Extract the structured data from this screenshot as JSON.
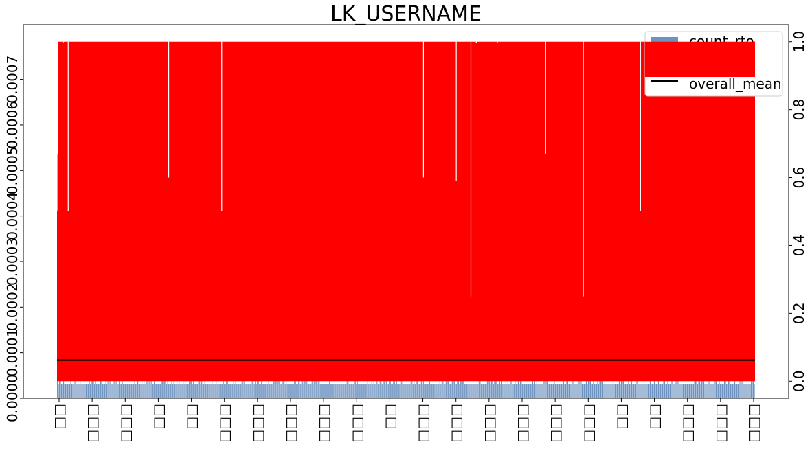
{
  "chart_data": {
    "type": "bar",
    "title": "LK_USERNAME",
    "xlabel": "",
    "ylabel": "",
    "y_left_ticks": [
      "0.0000",
      "0.0001",
      "0.0002",
      "0.0003",
      "0.0004",
      "0.0005",
      "0.0006",
      "0.0007"
    ],
    "y_right_ticks": [
      "0.0",
      "0.2",
      "0.4",
      "0.6",
      "0.8",
      "1.0"
    ],
    "x_tick_labels": [
      "□□",
      "□□□",
      "□□□",
      "□□",
      "□□",
      "□□□",
      "□□□",
      "□□□",
      "□□□",
      "□□□",
      "□□",
      "□□□",
      "□□□",
      "□□□",
      "□□□",
      "□□□",
      "□□□",
      "□□",
      "□□",
      "□□□",
      "□□□",
      "□□□"
    ],
    "ylim_left": [
      0.0,
      0.00082
    ],
    "ylim_right": [
      -0.05,
      1.05
    ],
    "legend_position": "top-right",
    "series": [
      {
        "name": "count_rto",
        "axis": "left",
        "style": "bar",
        "color": "#6f93c0",
        "typical_values": [
          3.05e-05,
          6.1e-05
        ],
        "note_values": "thousands of categories; most bars at 0.0000305 or 0.000061"
      },
      {
        "name": "mean",
        "axis": "right",
        "style": "line",
        "color": "#ff0000",
        "value_range": [
          0.0,
          1.0
        ],
        "dips": [
          {
            "index": 0.0,
            "min": 0.5
          },
          {
            "index": 0.001,
            "min": 0.67
          },
          {
            "index": 0.016,
            "min": 0.5
          },
          {
            "index": 0.16,
            "min": 0.6
          },
          {
            "index": 0.236,
            "min": 0.5
          },
          {
            "index": 0.525,
            "min": 0.6
          },
          {
            "index": 0.572,
            "min": 0.59
          },
          {
            "index": 0.593,
            "min": 0.25
          },
          {
            "index": 0.7,
            "min": 0.67
          },
          {
            "index": 0.754,
            "min": 0.25
          },
          {
            "index": 0.836,
            "min": 0.5
          }
        ]
      },
      {
        "name": "overall_mean",
        "axis": "right",
        "style": "line",
        "color": "#000000",
        "value": 0.062
      }
    ],
    "legend": {
      "entries": [
        "count_rto",
        "mean",
        "overall_mean"
      ]
    },
    "colors": {
      "bar": "#6f93c0",
      "mean": "#ff0000",
      "overall": "#000000"
    }
  }
}
